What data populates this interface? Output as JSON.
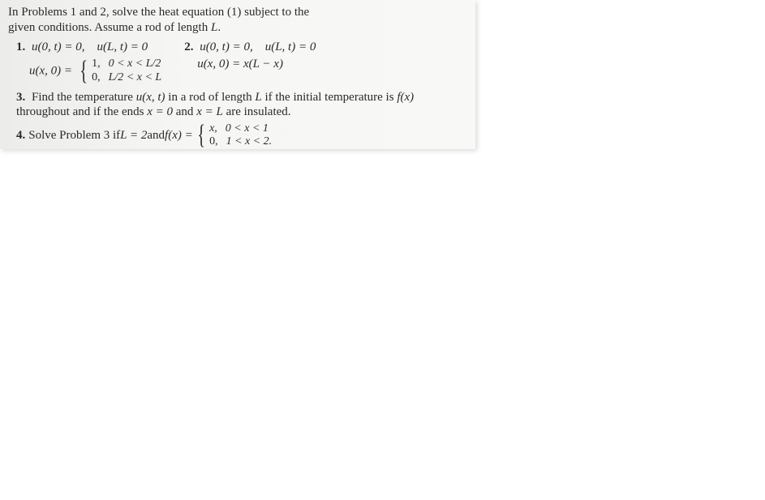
{
  "intro": {
    "line1_a": "In Problems 1 and 2, solve the heat equation (1) subject to the",
    "line2_a": "given conditions. Assume a rod of length ",
    "line2_L": "L",
    "line2_b": "."
  },
  "p1": {
    "num": "1.",
    "bc": "u(0, t) = 0, u(L, t) = 0",
    "ic_prefix": "u(x, 0) = ",
    "case1_val": "1,",
    "case1_cond": "0 < x < L/2",
    "case2_val": "0,",
    "case2_cond": "L/2 < x < L"
  },
  "p2": {
    "num": "2.",
    "bc": "u(0, t) = 0, u(L, t) = 0",
    "ic": "u(x, 0) = x(L − x)"
  },
  "p3": {
    "num": "3.",
    "text_a": "Find the temperature ",
    "text_uxt": "u(x, t)",
    "text_b": " in a rod of length ",
    "text_L": "L",
    "text_c": " if the initial temperature is ",
    "text_fx": "f(x)",
    "text_d": " throughout and if the ends ",
    "text_x0": "x = 0",
    "text_e": " and ",
    "text_xL": "x = L",
    "text_f": " are insulated."
  },
  "p4": {
    "num": "4.",
    "text_a": "Solve Problem 3 if ",
    "text_Leq": "L = 2",
    "text_b": " and ",
    "text_fx": "f(x) = ",
    "case1_val": "x,",
    "case1_cond": "0 < x < 1",
    "case2_val": "0,",
    "case2_cond": "1 < x < 2."
  }
}
